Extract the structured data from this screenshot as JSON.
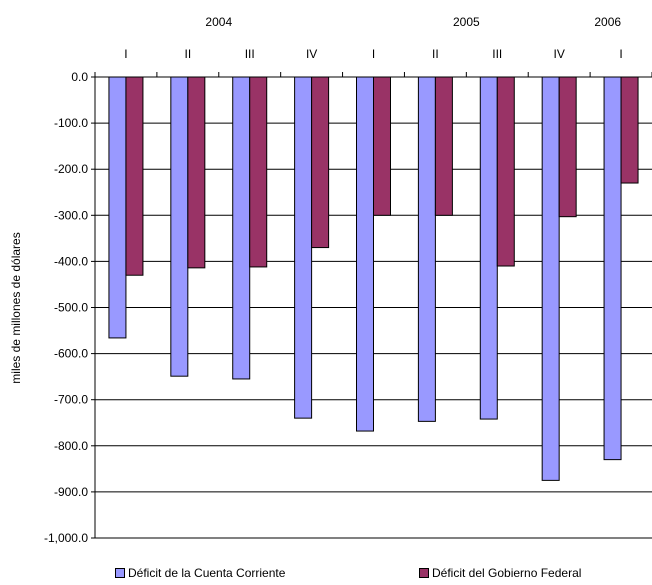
{
  "chart_data": {
    "type": "bar",
    "years": [
      {
        "label": "2004",
        "category_index": 1.5
      },
      {
        "label": "2005",
        "category_index": 5.5
      },
      {
        "label": "2006",
        "category_index": 8
      }
    ],
    "categories": [
      "I",
      "II",
      "III",
      "IV",
      "I",
      "II",
      "III",
      "IV",
      "I"
    ],
    "series": [
      {
        "name": "Déficit de la Cuenta Corriente",
        "color": "#9999ff",
        "values": [
          -566,
          -649,
          -655,
          -740,
          -768,
          -747,
          -742,
          -875,
          -830
        ]
      },
      {
        "name": "Déficit del Gobierno Federal",
        "color": "#993366",
        "values": [
          -430,
          -414,
          -412,
          -370,
          -300,
          -300,
          -410,
          -303,
          -230
        ]
      }
    ],
    "ylabel": "miles de millones de dólares",
    "ylim": [
      -1000,
      0
    ],
    "yticks": [
      "0.0",
      "-100.0",
      "-200.0",
      "-300.0",
      "-400.0",
      "-500.0",
      "-600.0",
      "-700.0",
      "-800.0",
      "-900.0",
      "-1,000.0"
    ],
    "grid": true,
    "legend_position": "bottom"
  }
}
